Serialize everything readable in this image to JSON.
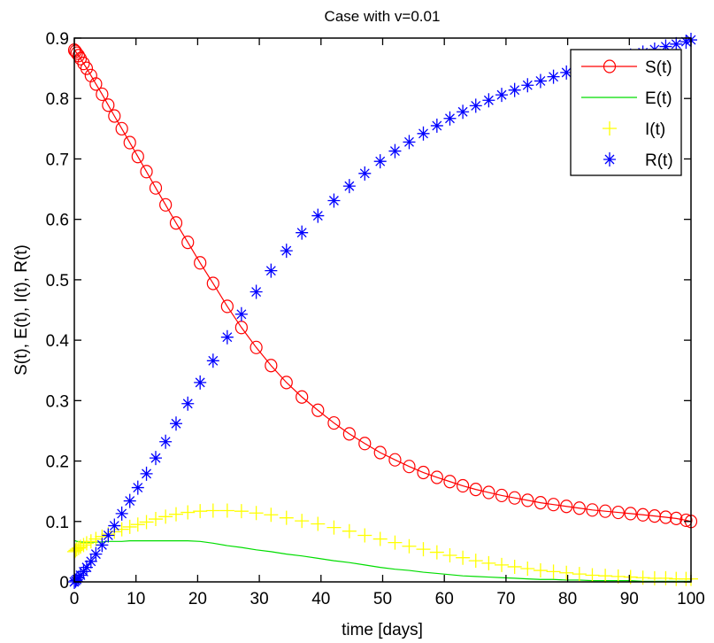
{
  "chart_data": {
    "type": "line",
    "title": "Case with v=0.01",
    "xlabel": "time [days]",
    "ylabel": "S(t),  E(t),  I(t),  R(t)",
    "xlim": [
      0,
      100
    ],
    "ylim": [
      0,
      0.9
    ],
    "xticks": [
      0,
      10,
      20,
      30,
      40,
      50,
      60,
      70,
      80,
      90,
      100
    ],
    "xtick_labels": [
      "0",
      "10",
      "20",
      "30",
      "40",
      "50",
      "60",
      "70",
      "80",
      "90",
      "100"
    ],
    "yticks": [
      0,
      0.1,
      0.2,
      0.3,
      0.4,
      0.5,
      0.6,
      0.7,
      0.8,
      0.9
    ],
    "ytick_labels": [
      "0",
      "0.1",
      "0.2",
      "0.3",
      "0.4",
      "0.5",
      "0.6",
      "0.7",
      "0.8",
      "0.9"
    ],
    "grid": false,
    "legend_position": "top-right",
    "x": [
      0,
      0.2,
      0.4,
      0.7,
      1.0,
      1.5,
      2.0,
      2.7,
      3.5,
      4.5,
      5.5,
      6.5,
      7.7,
      9.0,
      10.3,
      11.7,
      13.2,
      14.8,
      16.5,
      18.4,
      20.4,
      22.5,
      24.8,
      27.1,
      29.5,
      31.9,
      34.4,
      36.9,
      39.5,
      42.1,
      44.6,
      47.1,
      49.6,
      52.0,
      54.3,
      56.6,
      58.8,
      60.9,
      63.0,
      65.1,
      67.2,
      69.3,
      71.4,
      73.5,
      75.6,
      77.7,
      79.8,
      81.9,
      84.0,
      86.1,
      88.2,
      90.2,
      92.2,
      94.1,
      95.9,
      97.6,
      99.2,
      100
    ],
    "series": [
      {
        "name": "S(t)",
        "legend_label": "S(t)",
        "color": "#ff0000",
        "marker": "circle",
        "line": true,
        "values": [
          0.88,
          0.878,
          0.875,
          0.871,
          0.866,
          0.858,
          0.85,
          0.838,
          0.824,
          0.807,
          0.789,
          0.771,
          0.75,
          0.727,
          0.704,
          0.679,
          0.652,
          0.624,
          0.594,
          0.562,
          0.528,
          0.494,
          0.456,
          0.421,
          0.388,
          0.358,
          0.33,
          0.306,
          0.284,
          0.263,
          0.245,
          0.229,
          0.214,
          0.202,
          0.191,
          0.181,
          0.173,
          0.166,
          0.159,
          0.153,
          0.148,
          0.143,
          0.139,
          0.135,
          0.131,
          0.128,
          0.125,
          0.122,
          0.119,
          0.117,
          0.115,
          0.113,
          0.111,
          0.109,
          0.107,
          0.105,
          0.102,
          0.1
        ]
      },
      {
        "name": "E(t)",
        "legend_label": "E(t)",
        "color": "#00dd00",
        "marker": "none",
        "line": true,
        "values": [
          0.068,
          0.068,
          0.067,
          0.067,
          0.066,
          0.066,
          0.066,
          0.066,
          0.066,
          0.066,
          0.067,
          0.067,
          0.067,
          0.068,
          0.068,
          0.068,
          0.068,
          0.068,
          0.068,
          0.068,
          0.067,
          0.064,
          0.06,
          0.057,
          0.053,
          0.05,
          0.046,
          0.043,
          0.039,
          0.035,
          0.032,
          0.028,
          0.024,
          0.021,
          0.019,
          0.016,
          0.014,
          0.012,
          0.01,
          0.009,
          0.008,
          0.007,
          0.006,
          0.005,
          0.004,
          0.004,
          0.003,
          0.003,
          0.002,
          0.002,
          0.002,
          0.002,
          0.001,
          0.001,
          0.001,
          0.001,
          0.001,
          0.001
        ]
      },
      {
        "name": "I(t)",
        "legend_label": "I(t)",
        "color": "#ffff00",
        "marker": "plus",
        "line": false,
        "values": [
          0.05,
          0.052,
          0.054,
          0.056,
          0.058,
          0.061,
          0.064,
          0.067,
          0.071,
          0.075,
          0.079,
          0.083,
          0.087,
          0.091,
          0.095,
          0.099,
          0.104,
          0.108,
          0.112,
          0.115,
          0.117,
          0.118,
          0.118,
          0.117,
          0.114,
          0.111,
          0.106,
          0.101,
          0.096,
          0.09,
          0.084,
          0.077,
          0.071,
          0.065,
          0.059,
          0.054,
          0.049,
          0.044,
          0.04,
          0.035,
          0.031,
          0.028,
          0.025,
          0.022,
          0.019,
          0.017,
          0.015,
          0.013,
          0.011,
          0.01,
          0.009,
          0.008,
          0.007,
          0.006,
          0.006,
          0.005,
          0.005,
          0.005
        ]
      },
      {
        "name": "R(t)",
        "legend_label": "R(t)",
        "color": "#0000ff",
        "marker": "asterisk",
        "line": false,
        "values": [
          0.0,
          0.002,
          0.004,
          0.007,
          0.011,
          0.017,
          0.024,
          0.034,
          0.046,
          0.061,
          0.077,
          0.093,
          0.113,
          0.134,
          0.156,
          0.179,
          0.205,
          0.232,
          0.262,
          0.295,
          0.33,
          0.366,
          0.405,
          0.443,
          0.48,
          0.515,
          0.548,
          0.578,
          0.606,
          0.631,
          0.655,
          0.676,
          0.696,
          0.713,
          0.728,
          0.742,
          0.755,
          0.767,
          0.778,
          0.788,
          0.797,
          0.806,
          0.814,
          0.822,
          0.829,
          0.836,
          0.843,
          0.849,
          0.855,
          0.861,
          0.866,
          0.871,
          0.876,
          0.881,
          0.886,
          0.89,
          0.894,
          0.897
        ]
      }
    ]
  }
}
